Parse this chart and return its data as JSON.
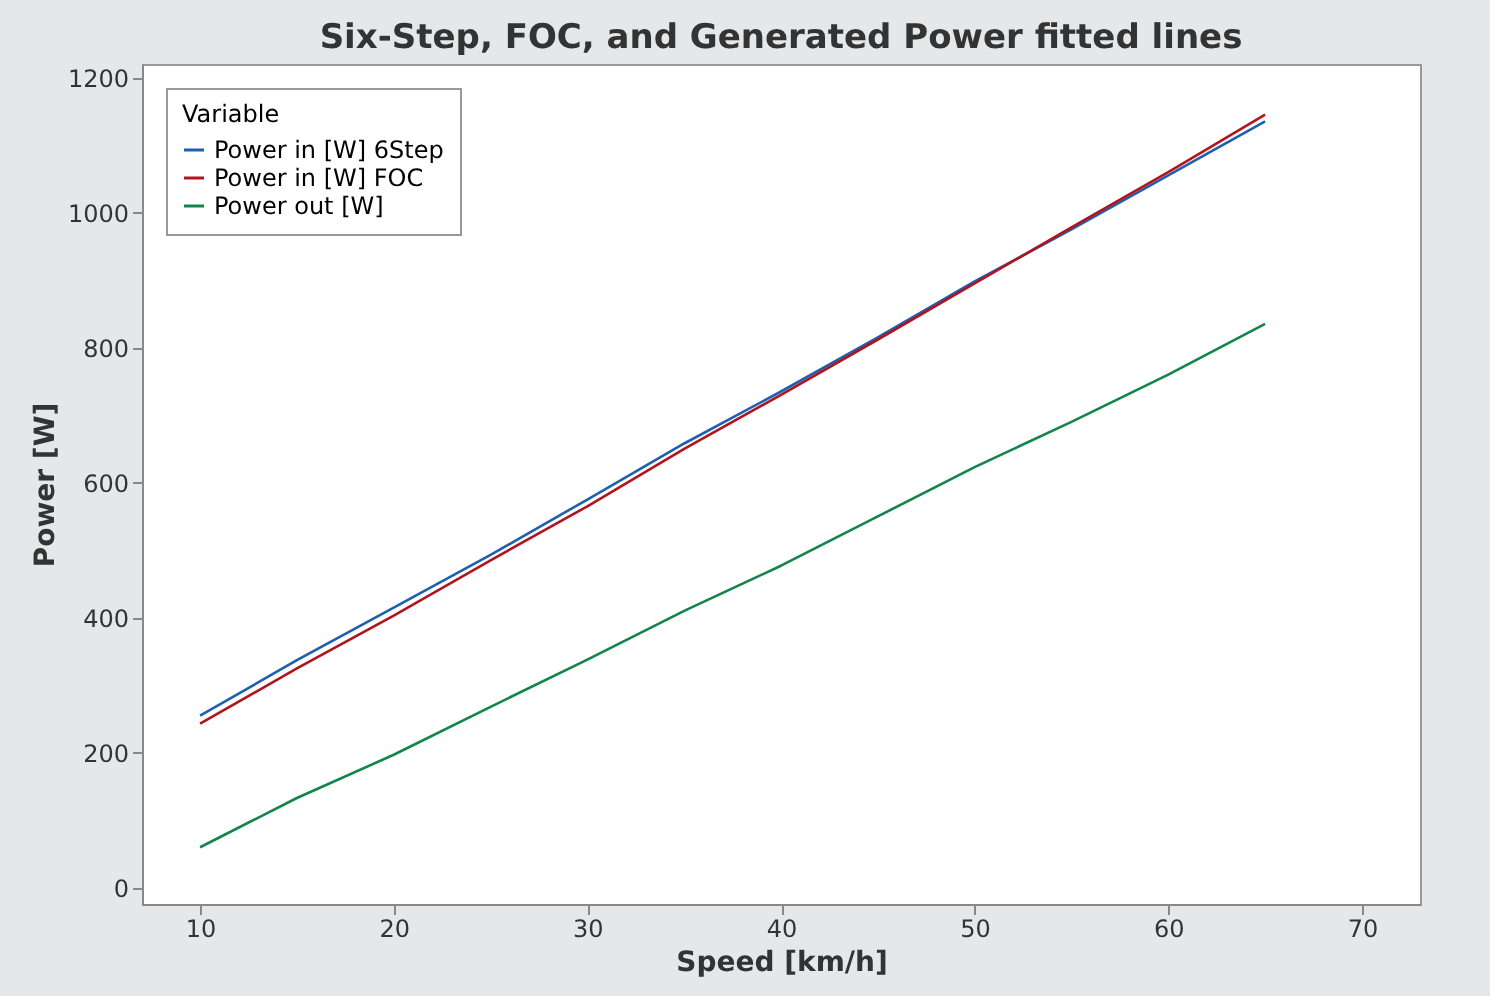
{
  "chart_data": {
    "type": "line",
    "title": "Six-Step, FOC, and Generated Power fitted lines",
    "xlabel": "Speed [km/h]",
    "ylabel": "Power [W]",
    "legend_title": "Variable",
    "x": [
      10,
      15,
      20,
      25,
      30,
      35,
      40,
      45,
      50,
      55,
      60,
      65
    ],
    "series": [
      {
        "name": "Power in [W] 6Step",
        "color": "#1f5fb0",
        "values": [
          255,
          337,
          415,
          493,
          575,
          658,
          735,
          815,
          898,
          975,
          1055,
          1135
        ]
      },
      {
        "name": "Power in [W] FOC",
        "color": "#b0141e",
        "values": [
          243,
          325,
          403,
          485,
          565,
          650,
          730,
          812,
          895,
          978,
          1060,
          1145
        ]
      },
      {
        "name": "Power out [W]",
        "color": "#12854a",
        "values": [
          60,
          133,
          197,
          268,
          338,
          410,
          477,
          550,
          623,
          690,
          760,
          835
        ]
      }
    ],
    "xlim": [
      7,
      73
    ],
    "ylim": [
      -24,
      1220
    ],
    "xticks": [
      10,
      20,
      30,
      40,
      50,
      60,
      70
    ],
    "yticks": [
      0,
      200,
      400,
      600,
      800,
      1000,
      1200
    ],
    "grid": false,
    "legend": "top left",
    "marker": "none",
    "line_style": "solid"
  }
}
